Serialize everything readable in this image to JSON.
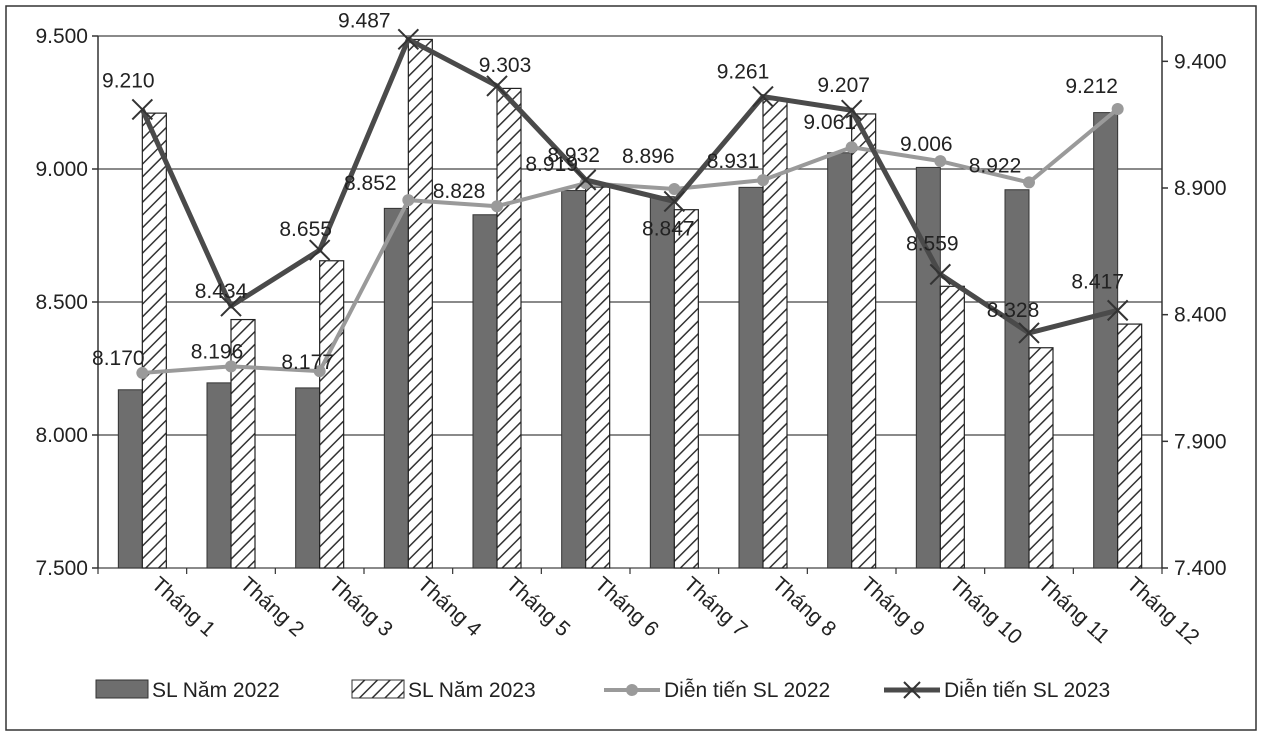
{
  "chart_data": {
    "type": "bar",
    "categories": [
      "Tháng 1",
      "Tháng 2",
      "Tháng 3",
      "Tháng 4",
      "Tháng 5",
      "Tháng 6",
      "Tháng 7",
      "Tháng 8",
      "Tháng 9",
      "Tháng 10",
      "Tháng 11",
      "Tháng 12"
    ],
    "series": [
      {
        "name": "SL Năm 2022",
        "kind": "bar",
        "axis": "left",
        "color": "#6e6e6e",
        "values": [
          8170,
          8196,
          8177,
          8852,
          8828,
          8919,
          8896,
          8931,
          9061,
          9006,
          8922,
          9212
        ]
      },
      {
        "name": "SL Năm 2023",
        "kind": "bar-hatched",
        "axis": "left",
        "color": "#333333",
        "values": [
          9210,
          8434,
          8655,
          9487,
          9303,
          8932,
          8847,
          9261,
          9207,
          8559,
          8328,
          8417
        ]
      },
      {
        "name": "Diễn tiến SL 2022",
        "kind": "line",
        "axis": "right",
        "color": "#9a9a9a",
        "values": [
          8170,
          8196,
          8177,
          8852,
          8828,
          8919,
          8896,
          8931,
          9061,
          9006,
          8922,
          9212
        ],
        "labels": [
          "8.170",
          "8.196",
          "8.177",
          "8.852",
          "8.828",
          "8.919",
          "8.896",
          "8.931",
          "9.061",
          "9.006",
          "8.922",
          "9.212"
        ]
      },
      {
        "name": "Diễn tiến SL 2023",
        "kind": "line",
        "axis": "right",
        "color": "#4a4a4a",
        "values": [
          9210,
          8434,
          8655,
          9487,
          9303,
          8932,
          8847,
          9261,
          9207,
          8559,
          8328,
          8417
        ],
        "labels": [
          "9.210",
          "8.434",
          "8.655",
          "9.487",
          "9.303",
          "8.932",
          "8.847",
          "9.261",
          "9.207",
          "8.559",
          "8.328",
          "8.417"
        ]
      }
    ],
    "left_axis": {
      "ylim": [
        7500,
        9500
      ],
      "ticks": [
        7500,
        8000,
        8500,
        9000,
        9500
      ],
      "tick_labels": [
        "7.500",
        "8.000",
        "8.500",
        "9.000",
        "9.500"
      ]
    },
    "right_axis": {
      "ylim": [
        7400,
        9500
      ],
      "ticks": [
        7400,
        7900,
        8400,
        8900,
        9400
      ],
      "tick_labels": [
        "7.400",
        "7.900",
        "8.400",
        "8.900",
        "9.400"
      ]
    },
    "grid": true,
    "legend_position": "bottom",
    "title": "",
    "xlabel": "",
    "ylabel": ""
  }
}
